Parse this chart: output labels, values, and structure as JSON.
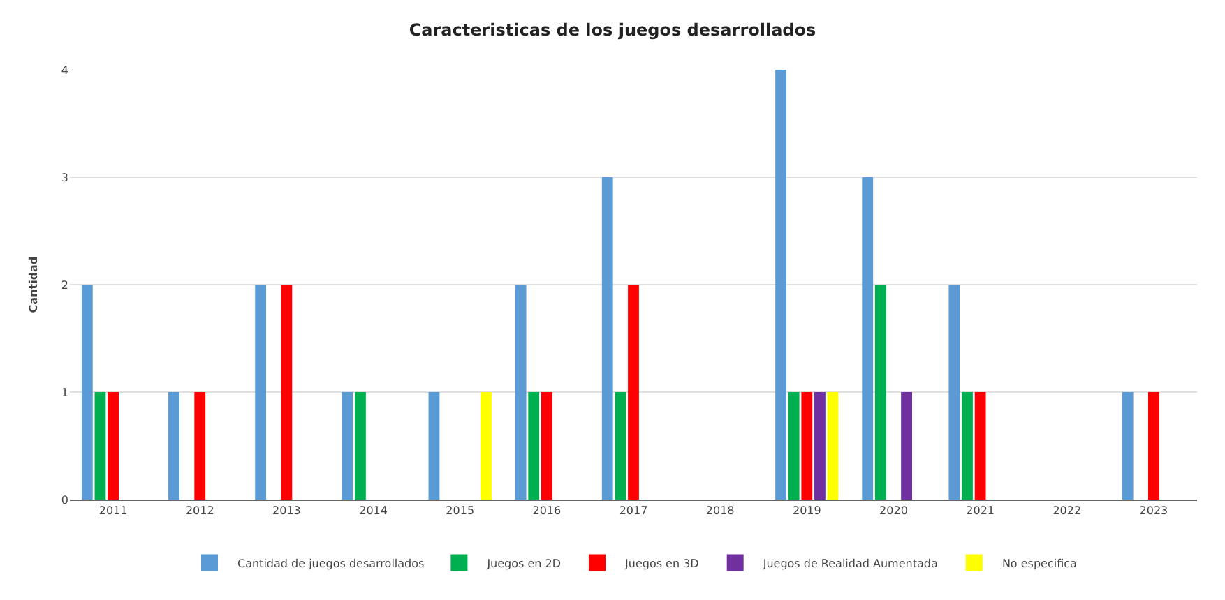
{
  "chart_data": {
    "type": "bar",
    "title": "Caracteristicas de los juegos desarrollados",
    "ylabel": "Cantidad",
    "categories": [
      "2011",
      "2012",
      "2013",
      "2014",
      "2015",
      "2016",
      "2017",
      "2018",
      "2019",
      "2020",
      "2021",
      "2022",
      "2023"
    ],
    "series": [
      {
        "name": "Cantidad de juegos desarrollados",
        "color": "#5b9bd5",
        "values": [
          2,
          1,
          2,
          1,
          1,
          2,
          3,
          0,
          4,
          3,
          2,
          0,
          1
        ]
      },
      {
        "name": "Juegos en 2D",
        "color": "#00b050",
        "values": [
          1,
          0,
          0,
          1,
          0,
          1,
          1,
          0,
          1,
          2,
          1,
          0,
          0
        ]
      },
      {
        "name": "Juegos en 3D",
        "color": "#ff0000",
        "values": [
          1,
          1,
          2,
          0,
          0,
          1,
          2,
          0,
          1,
          0,
          1,
          0,
          1
        ]
      },
      {
        "name": "Juegos de Realidad Aumentada",
        "color": "#7030a0",
        "values": [
          0,
          0,
          0,
          0,
          0,
          0,
          0,
          0,
          1,
          1,
          0,
          0,
          0
        ]
      },
      {
        "name": "No especifica",
        "color": "#ffff00",
        "values": [
          0,
          0,
          0,
          0,
          1,
          0,
          0,
          0,
          1,
          0,
          0,
          0,
          0
        ]
      }
    ],
    "ylim": [
      0,
      4
    ],
    "yticks": [
      0,
      1,
      2,
      3,
      4
    ],
    "grid": "y",
    "legend": "bottom"
  }
}
